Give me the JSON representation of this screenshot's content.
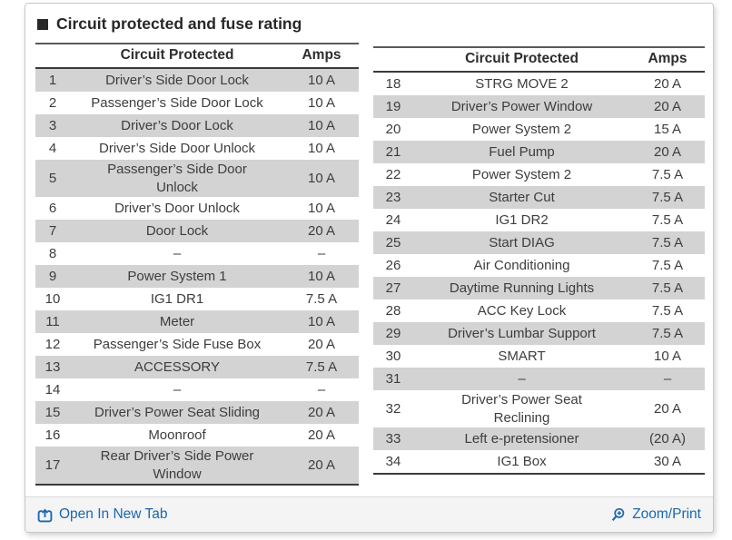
{
  "title": "Circuit protected and fuse rating",
  "colors": {
    "link": "#1a67b2",
    "row_shaded": "#d3d3d3"
  },
  "tables": [
    {
      "header": {
        "circuit": "Circuit Protected",
        "amps": "Amps"
      },
      "rows": [
        {
          "no": "1",
          "circuit": "Driver’s Side Door Lock",
          "amps": "10 A"
        },
        {
          "no": "2",
          "circuit": "Passenger’s Side Door Lock",
          "amps": "10 A"
        },
        {
          "no": "3",
          "circuit": "Driver’s Door Lock",
          "amps": "10 A"
        },
        {
          "no": "4",
          "circuit": "Driver’s Side Door Unlock",
          "amps": "10 A"
        },
        {
          "no": "5",
          "circuit": "Passenger’s Side Door\nUnlock",
          "amps": "10 A"
        },
        {
          "no": "6",
          "circuit": "Driver’s Door Unlock",
          "amps": "10 A"
        },
        {
          "no": "7",
          "circuit": "Door Lock",
          "amps": "20 A"
        },
        {
          "no": "8",
          "circuit": "–",
          "amps": "–"
        },
        {
          "no": "9",
          "circuit": "Power System 1",
          "amps": "10 A"
        },
        {
          "no": "10",
          "circuit": "IG1 DR1",
          "amps": "7.5 A"
        },
        {
          "no": "11",
          "circuit": "Meter",
          "amps": "10 A"
        },
        {
          "no": "12",
          "circuit": "Passenger’s Side Fuse Box",
          "amps": "20 A"
        },
        {
          "no": "13",
          "circuit": "ACCESSORY",
          "amps": "7.5 A"
        },
        {
          "no": "14",
          "circuit": "–",
          "amps": "–"
        },
        {
          "no": "15",
          "circuit": "Driver’s Power Seat Sliding",
          "amps": "20 A"
        },
        {
          "no": "16",
          "circuit": "Moonroof",
          "amps": "20 A"
        },
        {
          "no": "17",
          "circuit": "Rear Driver’s Side Power\nWindow",
          "amps": "20 A"
        }
      ]
    },
    {
      "header": {
        "circuit": "Circuit Protected",
        "amps": "Amps"
      },
      "rows": [
        {
          "no": "18",
          "circuit": "STRG MOVE 2",
          "amps": "20 A"
        },
        {
          "no": "19",
          "circuit": "Driver’s Power Window",
          "amps": "20 A"
        },
        {
          "no": "20",
          "circuit": "Power System 2",
          "amps": "15 A"
        },
        {
          "no": "21",
          "circuit": "Fuel Pump",
          "amps": "20 A"
        },
        {
          "no": "22",
          "circuit": "Power System 2",
          "amps": "7.5 A"
        },
        {
          "no": "23",
          "circuit": "Starter Cut",
          "amps": "7.5 A"
        },
        {
          "no": "24",
          "circuit": "IG1 DR2",
          "amps": "7.5 A"
        },
        {
          "no": "25",
          "circuit": "Start DIAG",
          "amps": "7.5 A"
        },
        {
          "no": "26",
          "circuit": "Air Conditioning",
          "amps": "7.5 A"
        },
        {
          "no": "27",
          "circuit": "Daytime Running Lights",
          "amps": "7.5 A"
        },
        {
          "no": "28",
          "circuit": "ACC Key Lock",
          "amps": "7.5 A"
        },
        {
          "no": "29",
          "circuit": "Driver’s Lumbar Support",
          "amps": "7.5 A"
        },
        {
          "no": "30",
          "circuit": "SMART",
          "amps": "10 A"
        },
        {
          "no": "31",
          "circuit": "–",
          "amps": "–"
        },
        {
          "no": "32",
          "circuit": "Driver’s Power Seat\nReclining",
          "amps": "20 A"
        },
        {
          "no": "33",
          "circuit": "Left e-pretensioner",
          "amps": "(20 A)"
        },
        {
          "no": "34",
          "circuit": "IG1 Box",
          "amps": "30 A"
        }
      ]
    }
  ],
  "footer": {
    "open_in_new_tab": "Open In New Tab",
    "zoom_print": "Zoom/Print"
  }
}
